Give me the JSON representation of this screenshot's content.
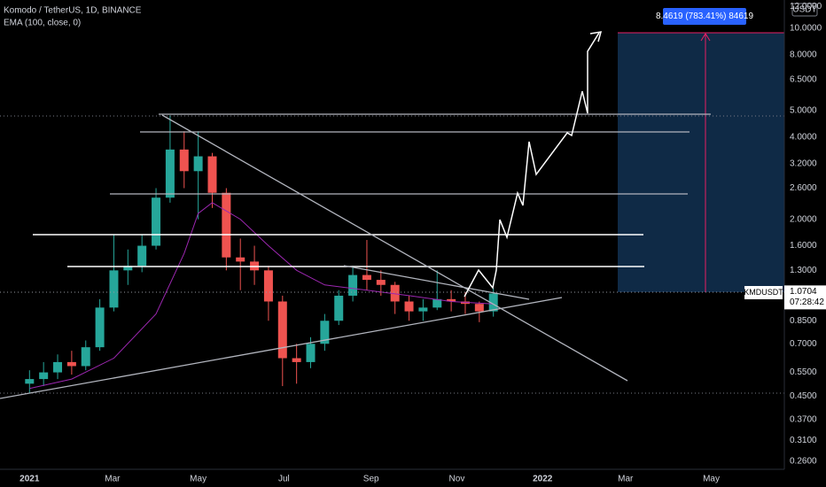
{
  "chart_data": {
    "type": "candlestick",
    "title": "Komodo / TetherUS, 1D, BINANCE",
    "x": [
      0,
      10,
      20,
      30,
      40,
      50,
      60,
      70,
      80,
      90,
      100,
      110,
      120,
      130,
      140,
      150,
      160,
      170,
      180,
      190,
      200,
      210,
      220,
      230,
      240,
      250,
      260,
      270,
      280,
      290,
      300,
      310,
      320,
      330
    ],
    "open": [
      0.5,
      0.52,
      0.55,
      0.6,
      0.58,
      0.68,
      0.95,
      1.3,
      1.35,
      1.6,
      2.4,
      3.6,
      3.0,
      3.4,
      2.5,
      1.45,
      1.4,
      1.3,
      1.0,
      0.62,
      0.6,
      0.7,
      0.85,
      1.05,
      1.25,
      1.2,
      1.15,
      1.0,
      0.92,
      0.95,
      1.02,
      1.0,
      0.98,
      0.92
    ],
    "high": [
      0.56,
      0.6,
      0.64,
      0.66,
      0.72,
      1.02,
      1.75,
      1.55,
      1.75,
      2.6,
      4.8,
      4.2,
      4.2,
      3.5,
      2.6,
      1.7,
      1.6,
      1.35,
      1.05,
      0.7,
      0.74,
      0.9,
      1.1,
      1.35,
      1.68,
      1.3,
      1.18,
      1.05,
      1.02,
      1.3,
      1.1,
      1.08,
      1.0,
      1.12
    ],
    "low": [
      0.46,
      0.49,
      0.52,
      0.54,
      0.56,
      0.66,
      0.92,
      1.15,
      1.28,
      1.55,
      2.3,
      2.6,
      2.0,
      2.2,
      1.3,
      1.1,
      1.15,
      0.85,
      0.49,
      0.5,
      0.57,
      0.66,
      0.82,
      1.0,
      1.1,
      1.05,
      0.9,
      0.85,
      0.85,
      0.93,
      0.92,
      0.9,
      0.84,
      0.88
    ],
    "close": [
      0.52,
      0.55,
      0.6,
      0.58,
      0.68,
      0.95,
      1.3,
      1.35,
      1.6,
      2.4,
      3.6,
      3.0,
      3.4,
      2.5,
      1.45,
      1.4,
      1.3,
      1.0,
      0.62,
      0.6,
      0.7,
      0.85,
      1.05,
      1.25,
      1.2,
      1.15,
      1.0,
      0.92,
      0.95,
      1.02,
      1.0,
      0.98,
      0.92,
      1.07
    ],
    "up_color": "#26a69a",
    "down_color": "#ef5350",
    "ema": {
      "name": "EMA (100, close, 0)",
      "color": "#9c27b0",
      "x": [
        0,
        30,
        60,
        90,
        110,
        120,
        130,
        150,
        170,
        190,
        210,
        240,
        270,
        300,
        330
      ],
      "values": [
        0.48,
        0.52,
        0.62,
        0.9,
        1.5,
        2.1,
        2.3,
        2.0,
        1.6,
        1.3,
        1.15,
        1.1,
        1.05,
        1.0,
        0.98
      ]
    },
    "log_scale": true,
    "xlim": [
      -21,
      537
    ],
    "xticks": [
      {
        "value": 0,
        "label": "2021"
      },
      {
        "value": 59,
        "label": "Mar"
      },
      {
        "value": 120,
        "label": "May"
      },
      {
        "value": 181,
        "label": "Jul"
      },
      {
        "value": 243,
        "label": "Sep"
      },
      {
        "value": 304,
        "label": "Nov"
      },
      {
        "value": 365,
        "label": "2022"
      },
      {
        "value": 424,
        "label": "Mar"
      },
      {
        "value": 485,
        "label": "May"
      }
    ],
    "ylim": [
      0.243,
      12.7
    ],
    "yticks": [
      {
        "value": 12,
        "label": "12.0000"
      },
      {
        "value": 10,
        "label": "10.0000"
      },
      {
        "value": 8,
        "label": "8.0000"
      },
      {
        "value": 6.5,
        "label": "6.5000"
      },
      {
        "value": 5,
        "label": "5.0000"
      },
      {
        "value": 4,
        "label": "4.0000"
      },
      {
        "value": 3.2,
        "label": "3.2000"
      },
      {
        "value": 2.6,
        "label": "2.6000"
      },
      {
        "value": 2,
        "label": "2.0000"
      },
      {
        "value": 1.6,
        "label": "1.6000"
      },
      {
        "value": 1.3,
        "label": "1.3000"
      },
      {
        "value": 0.85,
        "label": "0.8500"
      },
      {
        "value": 0.7,
        "label": "0.7000"
      },
      {
        "value": 0.55,
        "label": "0.5500"
      },
      {
        "value": 0.45,
        "label": "0.4500"
      },
      {
        "value": 0.37,
        "label": "0.3700"
      },
      {
        "value": 0.31,
        "label": "0.3100"
      },
      {
        "value": 0.26,
        "label": "0.2600"
      }
    ],
    "currency": "USDT",
    "symbol": "KMDUSDT",
    "last_price": 1.0704,
    "last_price_label": "1.0704",
    "countdown": "07:28:42",
    "target_label": "8.4619 (783.41%) 84619"
  }
}
